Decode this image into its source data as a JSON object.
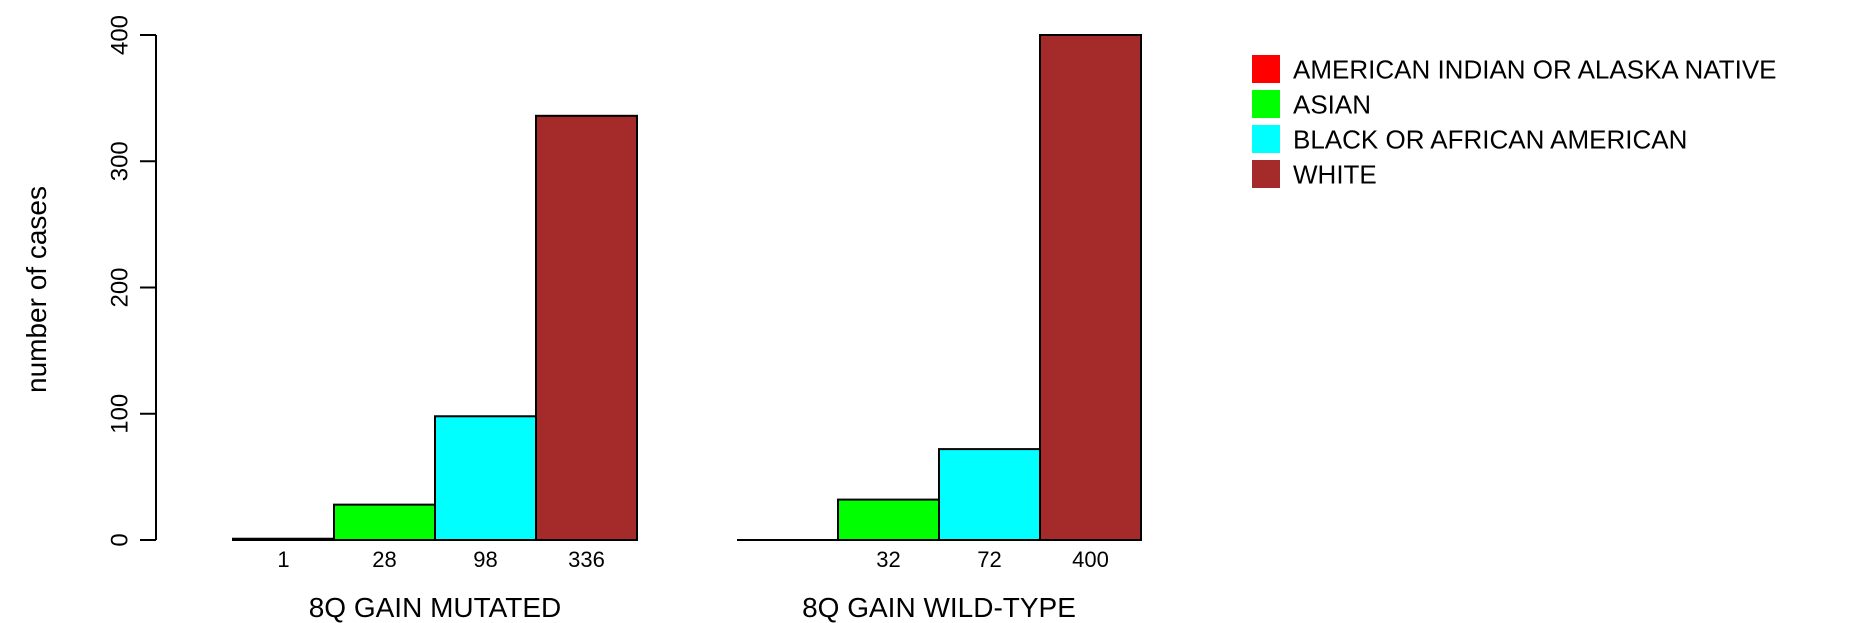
{
  "chart_data": {
    "type": "bar",
    "ylabel": "number of cases",
    "ylim": [
      0,
      400
    ],
    "yticks": [
      0,
      100,
      200,
      300,
      400
    ],
    "grid": false,
    "legend_position": "top-right",
    "series": [
      {
        "name": "AMERICAN INDIAN OR ALASKA NATIVE",
        "color": "#ff0000"
      },
      {
        "name": "ASIAN",
        "color": "#00ff00"
      },
      {
        "name": "BLACK OR AFRICAN AMERICAN",
        "color": "#00ffff"
      },
      {
        "name": "WHITE",
        "color": "#a52a2a"
      }
    ],
    "groups": [
      {
        "label": "8Q GAIN MUTATED",
        "values": [
          1,
          28,
          98,
          336
        ],
        "value_labels": [
          "1",
          "28",
          "98",
          "336"
        ]
      },
      {
        "label": "8Q GAIN WILD-TYPE",
        "values": [
          0,
          32,
          72,
          400
        ],
        "value_labels": [
          "",
          "32",
          "72",
          "400"
        ]
      }
    ]
  }
}
